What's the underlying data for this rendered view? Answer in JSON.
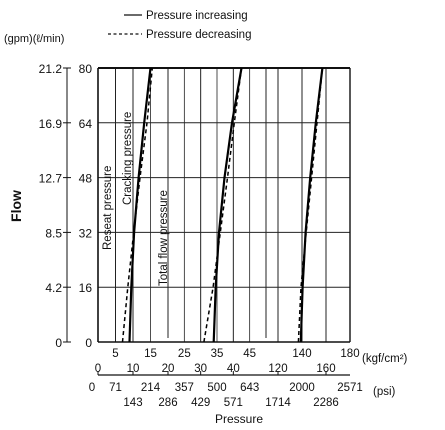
{
  "chart_data": {
    "type": "line",
    "ylabel": "Flow",
    "xlabel": "Pressure",
    "y_units": [
      "(gpm)",
      "(ℓ/min)"
    ],
    "x_units": [
      "(kgf/cm²)",
      "(psi)"
    ],
    "legend": {
      "position": "top",
      "solid": "Pressure increasing",
      "dashed": "Pressure decreasing"
    },
    "grid": true,
    "ylim": [
      0,
      80
    ],
    "y_ticks_lpm": [
      "0",
      "16",
      "32",
      "48",
      "64",
      "80"
    ],
    "y_ticks_gpm": [
      "0",
      "4.2",
      "8.5",
      "12.7",
      "16.9",
      "21.2"
    ],
    "x_tick_rows": {
      "kgf_upper": [
        {
          "label": "5",
          "kgf": 5
        },
        {
          "label": "15",
          "kgf": 15
        },
        {
          "label": "25",
          "kgf": 25
        },
        {
          "label": "35",
          "kgf": 35
        },
        {
          "label": "45",
          "kgf": 45
        },
        {
          "label": "140",
          "kgf": 140
        },
        {
          "label": "180",
          "kgf": 180
        }
      ],
      "kgf_lower": [
        {
          "label": "0",
          "kgf": 0
        },
        {
          "label": "10",
          "kgf": 10
        },
        {
          "label": "20",
          "kgf": 20
        },
        {
          "label": "30",
          "kgf": 30
        },
        {
          "label": "40",
          "kgf": 40
        },
        {
          "label": "120",
          "kgf": 120
        },
        {
          "label": "160",
          "kgf": 160
        }
      ],
      "psi_upper": [
        {
          "label": "0",
          "kgf": 0
        },
        {
          "label": "71",
          "kgf": 5
        },
        {
          "label": "214",
          "kgf": 15
        },
        {
          "label": "357",
          "kgf": 25
        },
        {
          "label": "500",
          "kgf": 35
        },
        {
          "label": "643",
          "kgf": 45
        },
        {
          "label": "2000",
          "kgf": 140
        },
        {
          "label": "2571",
          "kgf": 180
        }
      ],
      "psi_lower": [
        {
          "label": "143",
          "kgf": 10
        },
        {
          "label": "286",
          "kgf": 20
        },
        {
          "label": "429",
          "kgf": 30
        },
        {
          "label": "571",
          "kgf": 40
        },
        {
          "label": "1714",
          "kgf": 120
        },
        {
          "label": "2286",
          "kgf": 160
        }
      ]
    },
    "annotations": [
      "Reseat pressure",
      "Cracking pressure",
      "Total flow pressure"
    ],
    "series": [
      {
        "style": "solid",
        "points": [
          [
            9,
            0
          ],
          [
            9.5,
            16
          ],
          [
            10.3,
            32
          ],
          [
            11.6,
            48
          ],
          [
            13.2,
            64
          ],
          [
            15,
            80
          ]
        ]
      },
      {
        "style": "dashed",
        "points": [
          [
            7,
            0
          ],
          [
            8.5,
            16
          ],
          [
            10.2,
            32
          ],
          [
            12,
            48
          ],
          [
            14,
            64
          ],
          [
            15.5,
            80
          ]
        ]
      },
      {
        "style": "solid",
        "points": [
          [
            34,
            0
          ],
          [
            34.6,
            16
          ],
          [
            35.6,
            32
          ],
          [
            37.3,
            48
          ],
          [
            39.6,
            64
          ],
          [
            42.5,
            80
          ]
        ]
      },
      {
        "style": "dashed",
        "points": [
          [
            31,
            0
          ],
          [
            33.8,
            16
          ],
          [
            36,
            32
          ],
          [
            38.2,
            48
          ],
          [
            40.3,
            64
          ],
          [
            42.5,
            80
          ]
        ]
      },
      {
        "style": "solid",
        "points": [
          [
            139,
            0
          ],
          [
            140.5,
            16
          ],
          [
            143,
            32
          ],
          [
            146.8,
            48
          ],
          [
            151.5,
            64
          ],
          [
            157,
            80
          ]
        ]
      },
      {
        "style": "dashed",
        "points": [
          [
            137,
            0
          ],
          [
            139.2,
            16
          ],
          [
            143.5,
            32
          ],
          [
            148,
            48
          ],
          [
            152.5,
            64
          ],
          [
            157,
            80
          ]
        ]
      }
    ]
  }
}
